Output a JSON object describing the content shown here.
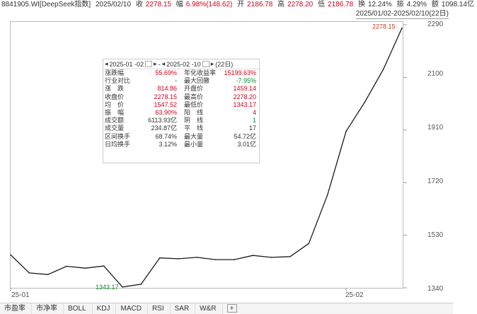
{
  "header": {
    "title": "8841905.WI[DeepSeek指数]",
    "date": "2025/02/10",
    "close_label": "收",
    "close_value": "2278.15",
    "change_label": "幅",
    "change_value": "6.98%(148.62)",
    "open_label": "开",
    "open_value": "2186.78",
    "high_label": "高",
    "high_value": "2278.20",
    "low_label": "低",
    "low_value": "2186.78",
    "turnover_label": "换",
    "turnover_value": "12.24%",
    "amplitude_label": "振",
    "amplitude_value": "4.29%",
    "amount_label": "额",
    "amount_value": "1098.14亿",
    "range": "2025/01/02-2025/02/10(22日)"
  },
  "y_axis": [
    "2290",
    "2100",
    "1910",
    "1720",
    "1530",
    "1340"
  ],
  "x_axis": [
    "25-01",
    "25-02"
  ],
  "annotations": {
    "max_label": "2278.15",
    "min_label": "1343.17"
  },
  "info": {
    "start_date": "2025-01 -02",
    "end_date": "2025-02 -10",
    "days": "(22日)",
    "rows": [
      {
        "l1": "涨跌幅",
        "v1": "55.69%",
        "l2": "年化收益率",
        "v2": "15199.63%"
      },
      {
        "l1": "行业对比",
        "v1": "-",
        "l2": "最大回撤",
        "v2": "-7.95%"
      },
      {
        "l1": "涨　跌",
        "v1": "814.86",
        "l2": "开盘价",
        "v2": "1459.14"
      },
      {
        "l1": "收盘价",
        "v1": "2278.15",
        "l2": "最高价",
        "v2": "2278.20"
      },
      {
        "l1": "均　价",
        "v1": "1547.52",
        "l2": "最低价",
        "v2": "1343.17"
      },
      {
        "l1": "振　幅",
        "v1": "63.90%",
        "l2": "阳　线",
        "v2": "4"
      },
      {
        "l1": "成交额",
        "v1": "6113.93亿",
        "l2": "阴　线",
        "v2": "1"
      },
      {
        "l1": "成交量",
        "v1": "234.87亿",
        "l2": "平　线",
        "v2": "17"
      },
      {
        "l1": "区间换手",
        "v1": "68.74%",
        "l2": "最大量",
        "v2": "54.72亿"
      },
      {
        "l1": "日均换手",
        "v1": "3.12%",
        "l2": "最小量",
        "v2": "3.01亿"
      }
    ]
  },
  "tabs": [
    "市盈率",
    "市净率",
    "BOLL",
    "KDJ",
    "MACD",
    "RSI",
    "SAR",
    "W&R"
  ],
  "tab_add": "+",
  "chart_data": {
    "type": "line",
    "x": [
      "2025-01-02",
      "2025-01-03",
      "2025-01-06",
      "2025-01-07",
      "2025-01-08",
      "2025-01-09",
      "2025-01-10",
      "2025-01-13",
      "2025-01-14",
      "2025-01-15",
      "2025-01-16",
      "2025-01-17",
      "2025-01-20",
      "2025-01-21",
      "2025-01-22",
      "2025-01-23",
      "2025-01-24",
      "2025-01-27",
      "2025-02-05",
      "2025-02-06",
      "2025-02-07",
      "2025-02-10"
    ],
    "values": [
      1459,
      1394,
      1388,
      1418,
      1411,
      1419,
      1343.17,
      1353,
      1448,
      1445,
      1450,
      1442,
      1442,
      1457,
      1450,
      1453,
      1500,
      1675,
      1905,
      2010,
      2129,
      2278.15
    ],
    "ylim": [
      1340,
      2290
    ]
  }
}
